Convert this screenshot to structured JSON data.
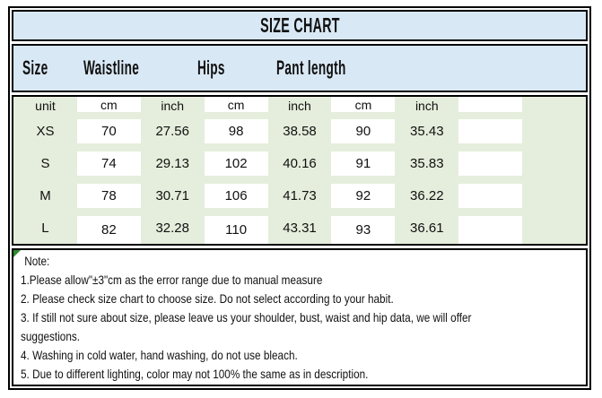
{
  "title": "SIZE CHART",
  "header": {
    "labels": [
      "Size",
      "Waistline",
      "Hips",
      "Pant length"
    ]
  },
  "table": {
    "unit_row": [
      "unit",
      "cm",
      "inch",
      "cm",
      "inch",
      "cm",
      "inch"
    ],
    "rows": [
      {
        "cells": [
          "XS",
          "70",
          "27.56",
          "98",
          "38.58",
          "90",
          "35.43"
        ]
      },
      {
        "cells": [
          "S",
          "74",
          "29.13",
          "102",
          "40.16",
          "91",
          "35.83"
        ]
      },
      {
        "cells": [
          "M",
          "78",
          "30.71",
          "106",
          "41.73",
          "92",
          "36.22"
        ]
      },
      {
        "cells": [
          "L",
          "82",
          "32.28",
          "110",
          "43.31",
          "93",
          "36.61"
        ]
      }
    ]
  },
  "note": {
    "lines": [
      "Note:",
      "1.Please allow\"±3\"cm as the error range due to manual measure",
      "2. Please check size chart to choose size. Do not select according to your habit.",
      "3. If still not sure about size, please leave us your shoulder, bust, waist and hip data, we will offer",
      "suggestions.",
      "4. Washing in cold water, hand washing, do not use bleach.",
      "5. Due to different lighting, color may not 100% the same as in description."
    ]
  },
  "colors": {
    "header_blue": "#d9e8f5",
    "cell_green": "#e5eedc",
    "border_black": "#000000",
    "corner_marker_green": "#2e8b2e"
  }
}
